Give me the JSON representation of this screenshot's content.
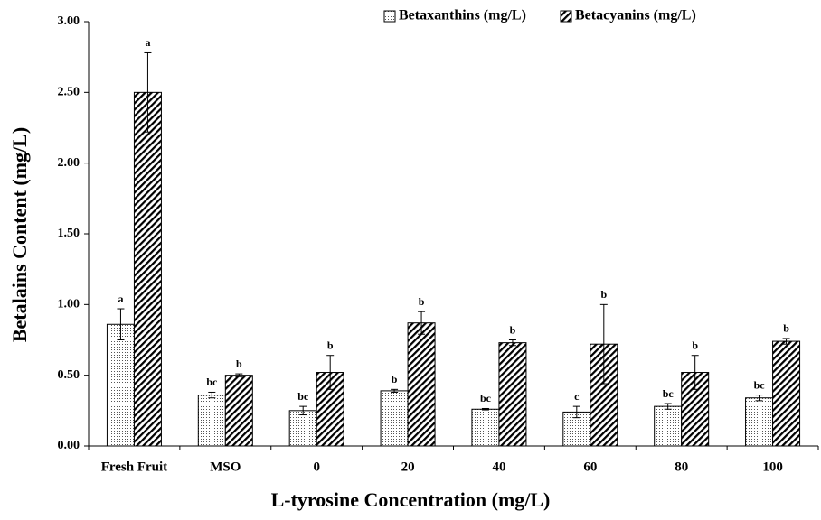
{
  "chart_data": {
    "type": "bar",
    "y_label": "Betalains Content (mg/L)",
    "x_label": "L-tyrosine Concentration (mg/L)",
    "categories": [
      "Fresh Fruit",
      "MSO",
      "0",
      "20",
      "40",
      "60",
      "80",
      "100"
    ],
    "series": [
      {
        "name": "Betaxanthins (mg/L)",
        "color": "#000000",
        "pattern": "dots",
        "values": [
          0.86,
          0.36,
          0.25,
          0.39,
          0.26,
          0.24,
          0.28,
          0.34
        ],
        "errors": [
          0.11,
          0.02,
          0.03,
          0.01,
          0.005,
          0.04,
          0.02,
          0.02
        ],
        "letters": [
          "a",
          "bc",
          "bc",
          "b",
          "bc",
          "c",
          "bc",
          "bc"
        ]
      },
      {
        "name": "Betacyanins (mg/L)",
        "color": "#000000",
        "pattern": "hatch",
        "values": [
          2.5,
          0.5,
          0.52,
          0.87,
          0.73,
          0.72,
          0.52,
          0.74
        ],
        "errors": [
          0.28,
          0.01,
          0.12,
          0.08,
          0.02,
          0.28,
          0.12,
          0.02
        ],
        "letters": [
          "a",
          "b",
          "b",
          "b",
          "b",
          "b",
          "b",
          "b"
        ]
      }
    ],
    "ylim": [
      0,
      3
    ],
    "yticks": [
      {
        "value": 0,
        "label": "0.00"
      },
      {
        "value": 0.5,
        "label": "0.50"
      },
      {
        "value": 1,
        "label": "1.00"
      },
      {
        "value": 1.5,
        "label": "1.50"
      },
      {
        "value": 2,
        "label": "2.00"
      },
      {
        "value": 2.5,
        "label": "2.50"
      },
      {
        "value": 3,
        "label": "3.00"
      }
    ],
    "legend": "top"
  }
}
